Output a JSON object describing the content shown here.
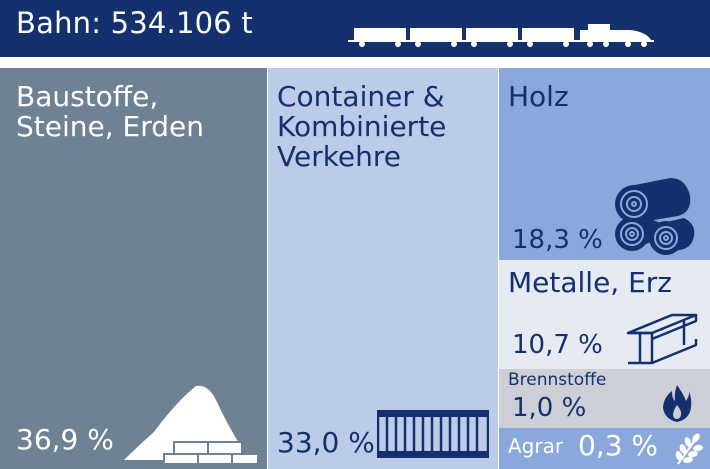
{
  "header": {
    "title": "Bahn: 534.106 t",
    "background": "#15306e",
    "text_color": "#ffffff",
    "icon": "train-icon"
  },
  "chart_data": {
    "type": "treemap",
    "title": "Bahn: 534.106 t",
    "unit": "%",
    "categories": [
      {
        "key": "bau",
        "label_lines": [
          "Baustoffe,",
          "Steine, Erden"
        ],
        "value": 36.9,
        "value_label": "36,9 %",
        "color": "#6e8294",
        "text_color": "#ffffff",
        "icon": "sand-bricks-icon"
      },
      {
        "key": "con",
        "label_lines": [
          "Container &",
          "Kombinierte",
          "Verkehre"
        ],
        "value": 33.0,
        "value_label": "33,0 %",
        "color": "#bccbe7",
        "text_color": "#15306e",
        "icon": "shipping-container-icon"
      },
      {
        "key": "holz",
        "label_lines": [
          "Holz"
        ],
        "value": 18.3,
        "value_label": "18,3 %",
        "color": "#8ba8dc",
        "text_color": "#15306e",
        "icon": "logs-icon"
      },
      {
        "key": "met",
        "label_lines": [
          "Metalle, Erz"
        ],
        "value": 10.7,
        "value_label": "10,7 %",
        "color": "#e6eaf3",
        "text_color": "#15306e",
        "icon": "steel-beam-icon"
      },
      {
        "key": "bren",
        "label_lines": [
          "Brennstoffe"
        ],
        "value": 1.0,
        "value_label": "1,0 %",
        "color": "#cdcfd6",
        "text_color": "#15306e",
        "icon": "flame-icon"
      },
      {
        "key": "agr",
        "label_lines": [
          "Agrar"
        ],
        "value": 0.3,
        "value_label": "0,3 %",
        "color": "#8ba8dc",
        "text_color": "#ffffff",
        "icon": "wheat-icon"
      }
    ]
  }
}
